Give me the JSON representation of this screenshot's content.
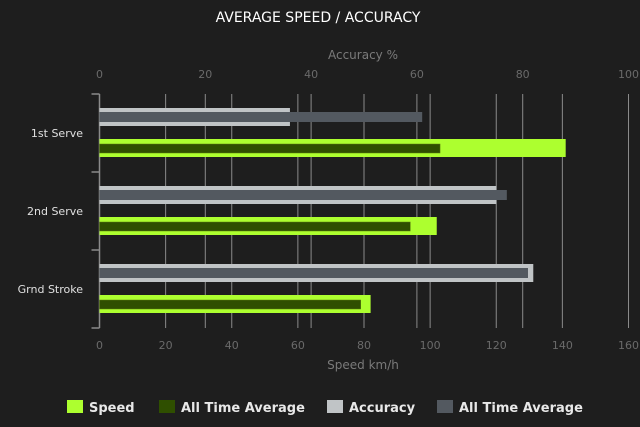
{
  "chart_data": {
    "type": "bar",
    "orientation": "horizontal",
    "title": "AVERAGE SPEED / ACCURACY",
    "categories": [
      "1st Serve",
      "2nd Serve",
      "Grnd Stroke"
    ],
    "x_bottom": {
      "label": "Speed km/h",
      "range": [
        0,
        160
      ],
      "ticks": [
        0,
        20,
        40,
        60,
        80,
        100,
        120,
        140,
        160
      ]
    },
    "x_top": {
      "label": "Accuracy %",
      "range": [
        0,
        100
      ],
      "ticks": [
        0,
        20,
        40,
        60,
        80,
        100
      ]
    },
    "grid": true,
    "legend_position": "bottom",
    "series": [
      {
        "name": "Speed",
        "axis": "bottom",
        "color": "#adff2f",
        "values": [
          141,
          102,
          82
        ]
      },
      {
        "name": "All Time Average",
        "axis": "bottom",
        "color": "#2f4f00",
        "values": [
          103,
          94,
          79
        ]
      },
      {
        "name": "Accuracy",
        "axis": "top",
        "color": "#c0c4c6",
        "values": [
          36,
          75,
          82
        ]
      },
      {
        "name": "All Time Average",
        "axis": "top",
        "color": "#535960",
        "values": [
          61,
          77,
          81
        ]
      }
    ]
  }
}
